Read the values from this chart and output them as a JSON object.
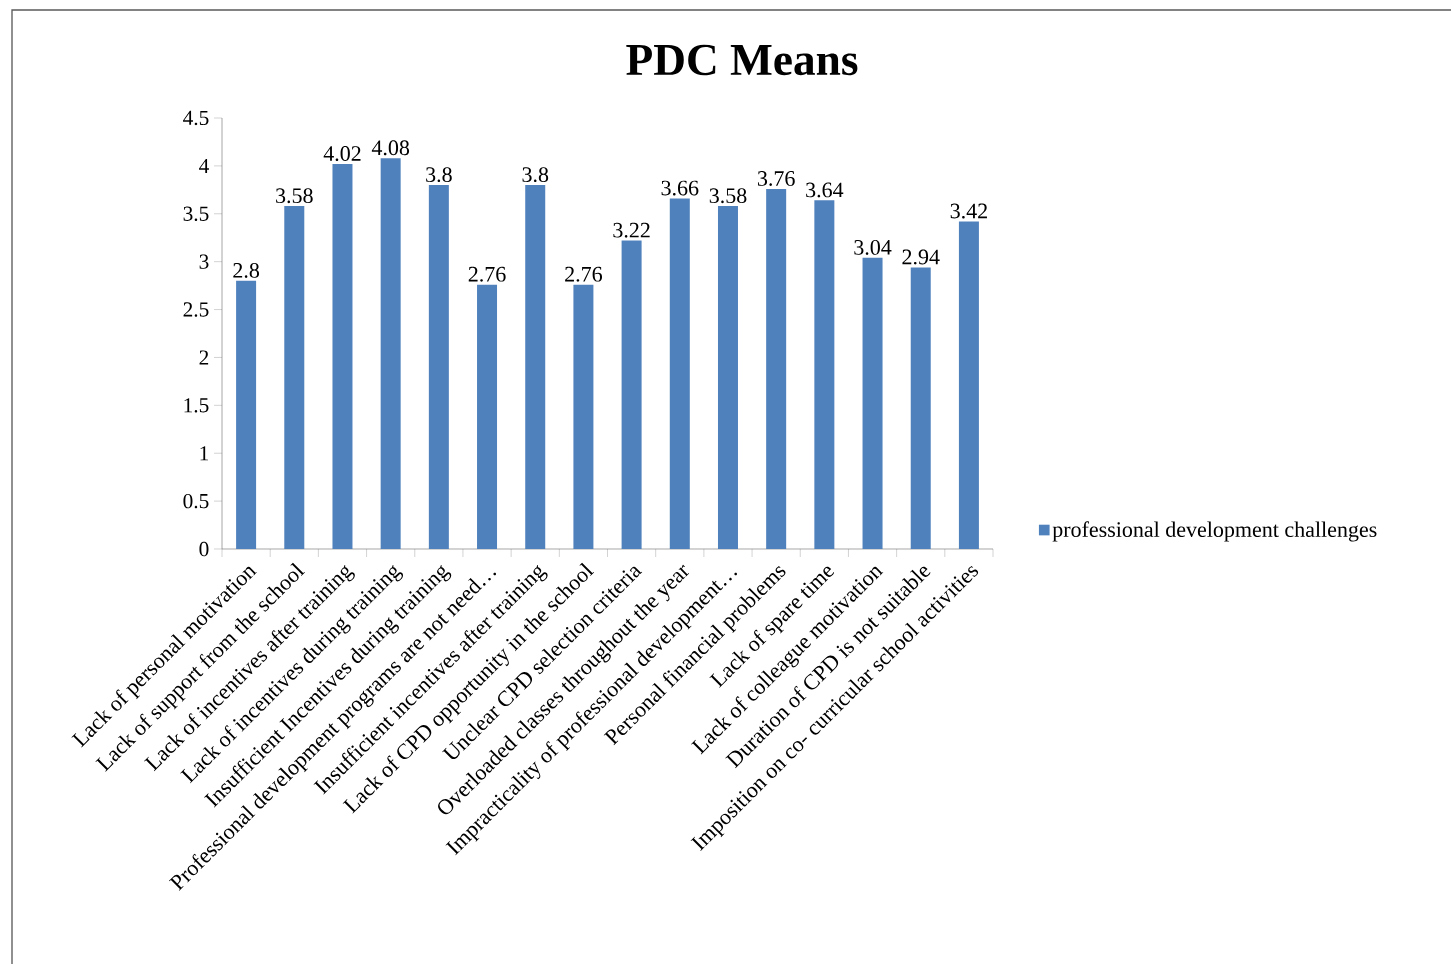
{
  "chart_data": {
    "type": "bar",
    "title": "PDC Means",
    "categories": [
      "Lack of personal motivation",
      "Lack of support from the school",
      "Lack of incentives after training",
      "Lack of incentives during training",
      "Insufficient Incentives  during training",
      "Professional development programs are not need…",
      "Insufficient incentives after training",
      "Lack of CPD opportunity in the school",
      "Unclear  CPD selection criteria",
      "Overloaded classes throughout the year",
      "Impracticality of professional development…",
      "Personal financial problems",
      "Lack of spare time",
      "Lack of colleague motivation",
      "Duration of CPD is not suitable",
      "Imposition on co- curricular  school activities"
    ],
    "series": [
      {
        "name": "professional development challenges",
        "color": "#4f81bd",
        "values": [
          2.8,
          3.58,
          4.02,
          4.08,
          3.8,
          2.76,
          3.8,
          2.76,
          3.22,
          3.66,
          3.58,
          3.76,
          3.64,
          3.04,
          2.94,
          3.42
        ]
      }
    ],
    "ylim": [
      0,
      4.5
    ],
    "yticks": [
      0,
      0.5,
      1,
      1.5,
      2,
      2.5,
      3,
      3.5,
      4,
      4.5
    ],
    "data_labels": true,
    "legend": "right",
    "grid": false
  }
}
